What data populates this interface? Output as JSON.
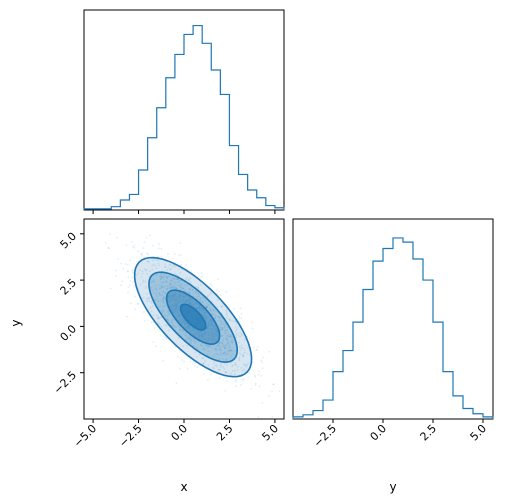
{
  "chart_data": {
    "type": "corner",
    "color": "#1f77b4",
    "panels": [
      {
        "name": "hist-x",
        "type": "histogram",
        "variable": "x",
        "x_range": [
          -5.5,
          5.5
        ],
        "bin_edges": [
          -5.5,
          -5.0,
          -4.5,
          -4.0,
          -3.5,
          -3.0,
          -2.5,
          -2.0,
          -1.5,
          -1.0,
          -0.5,
          0.0,
          0.5,
          1.0,
          1.5,
          2.0,
          2.5,
          3.0,
          3.5,
          4.0,
          4.5,
          5.0,
          5.5
        ],
        "counts": [
          1,
          1,
          1,
          3,
          9,
          14,
          36,
          65,
          92,
          119,
          140,
          158,
          166,
          150,
          126,
          104,
          58,
          32,
          18,
          11,
          4,
          2
        ],
        "y_max": 180,
        "show_y_ticks": false
      },
      {
        "name": "scatter-xy",
        "type": "hist2d",
        "x_variable": "x",
        "y_variable": "y",
        "x_range": [
          -5.5,
          5.5
        ],
        "y_range": [
          -5.0,
          5.8
        ],
        "correlation": -0.75,
        "center": [
          0.5,
          0.5
        ],
        "x_ticks": [
          -5.0,
          -2.5,
          0.0,
          2.5,
          5.0
        ],
        "x_tick_labels": [
          "−5.0",
          "−2.5",
          "0.0",
          "2.5",
          "5.0"
        ],
        "y_ticks": [
          -2.5,
          0.0,
          2.5,
          5.0
        ],
        "y_tick_labels": [
          "−2.5",
          "0.0",
          "2.5",
          "5.0"
        ],
        "xlabel": "x",
        "ylabel": "y",
        "contour_levels": [
          "0.12",
          "0.39",
          "0.68",
          "0.86"
        ]
      },
      {
        "name": "hist-y",
        "type": "histogram",
        "variable": "y",
        "x_range": [
          -4.5,
          5.5
        ],
        "bin_edges": [
          -4.5,
          -4.0,
          -3.5,
          -3.0,
          -2.5,
          -2.0,
          -1.5,
          -1.0,
          -0.5,
          0.0,
          0.5,
          1.0,
          1.5,
          2.0,
          2.5,
          3.0,
          3.5,
          4.0,
          4.5,
          5.0,
          5.5
        ],
        "counts": [
          2,
          4,
          8,
          18,
          45,
          65,
          92,
          123,
          150,
          162,
          172,
          168,
          152,
          132,
          92,
          45,
          22,
          10,
          5,
          2
        ],
        "y_max": 190,
        "x_ticks": [
          -2.5,
          0.0,
          2.5,
          5.0
        ],
        "x_tick_labels": [
          "−2.5",
          "0.0",
          "2.5",
          "5.0"
        ],
        "xlabel": "y",
        "show_y_ticks": false
      }
    ]
  }
}
